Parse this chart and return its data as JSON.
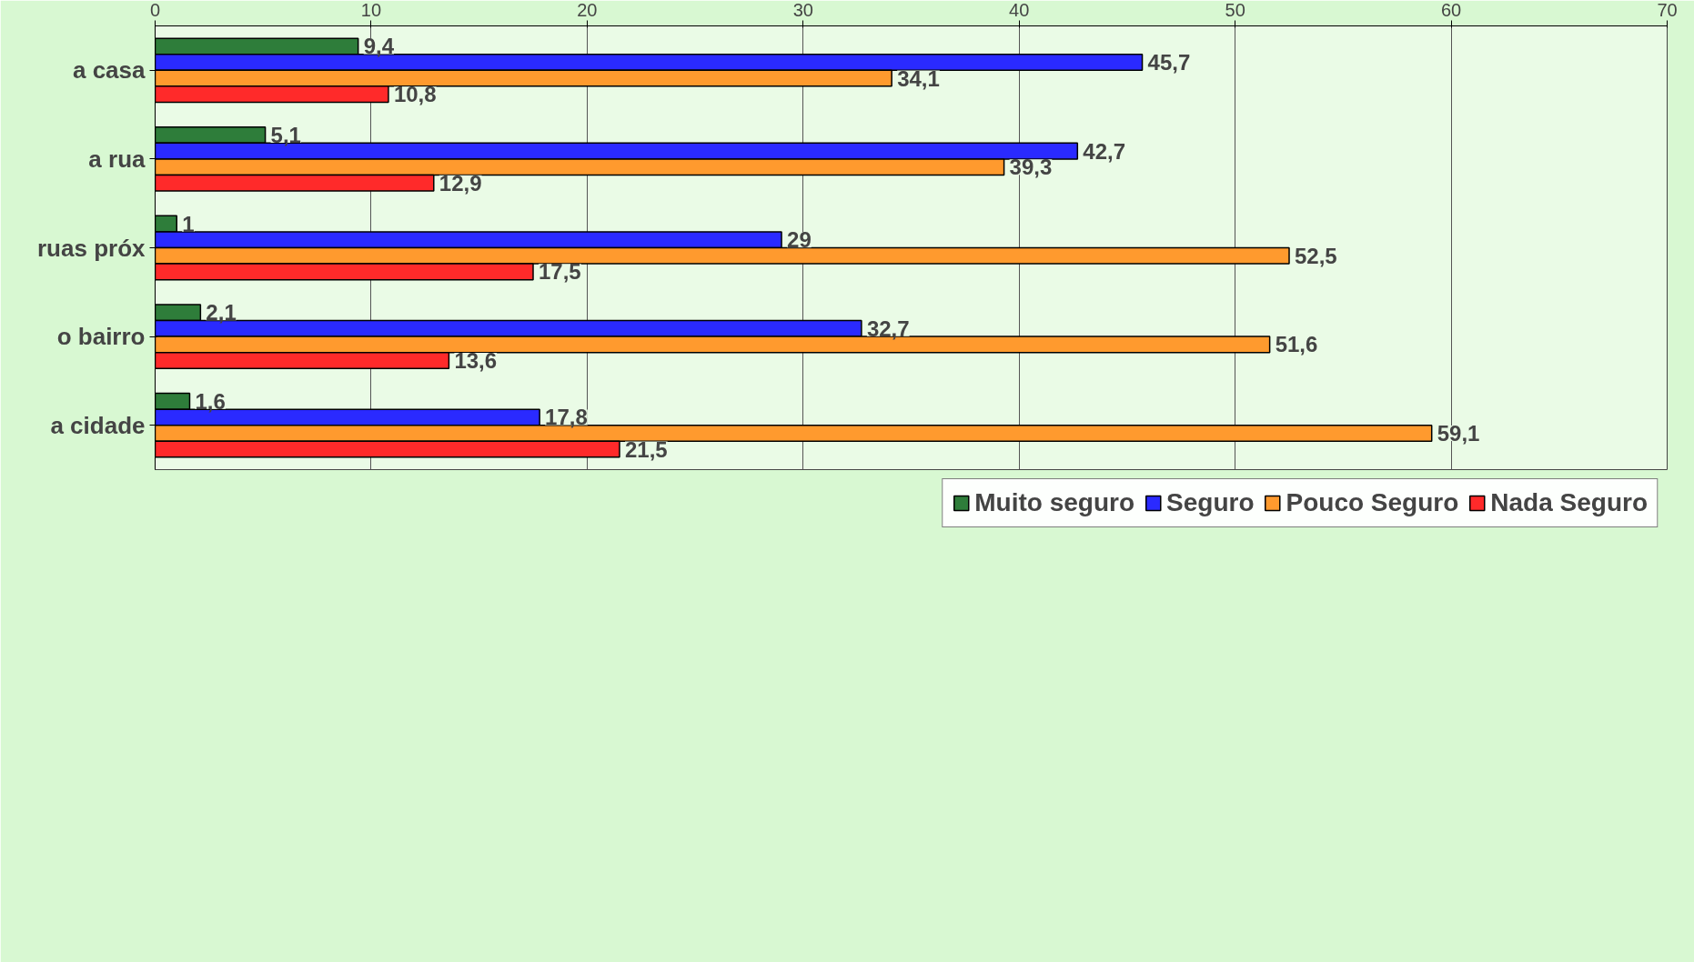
{
  "chart_data": {
    "type": "bar",
    "orientation": "horizontal",
    "categories": [
      "a casa",
      "a rua",
      "ruas próx",
      "o bairro",
      "a cidade"
    ],
    "series": [
      {
        "name": "Muito seguro",
        "color": "#2e7d3a",
        "values": [
          9.4,
          5.1,
          1,
          2.1,
          1.6
        ],
        "value_labels": [
          "9,4",
          "5,1",
          "1",
          "2,1",
          "1,6"
        ]
      },
      {
        "name": "Seguro",
        "color": "#2a2aff",
        "values": [
          45.7,
          42.7,
          29,
          32.7,
          17.8
        ],
        "value_labels": [
          "45,7",
          "42,7",
          "29",
          "32,7",
          "17,8"
        ]
      },
      {
        "name": "Pouco Seguro",
        "color": "#ff9a2e",
        "values": [
          34.1,
          39.3,
          52.5,
          51.6,
          59.1
        ],
        "value_labels": [
          "34,1",
          "39,3",
          "52,5",
          "51,6",
          "59,1"
        ]
      },
      {
        "name": "Nada Seguro",
        "color": "#ff2a2a",
        "values": [
          10.8,
          12.9,
          17.5,
          13.6,
          21.5
        ],
        "value_labels": [
          "10,8",
          "12,9",
          "17,5",
          "13,6",
          "21,5"
        ]
      }
    ],
    "xlim": [
      0,
      70
    ],
    "xticks": [
      0,
      10,
      20,
      30,
      40,
      50,
      60,
      70
    ],
    "grid": "x",
    "legend": "bottom"
  }
}
